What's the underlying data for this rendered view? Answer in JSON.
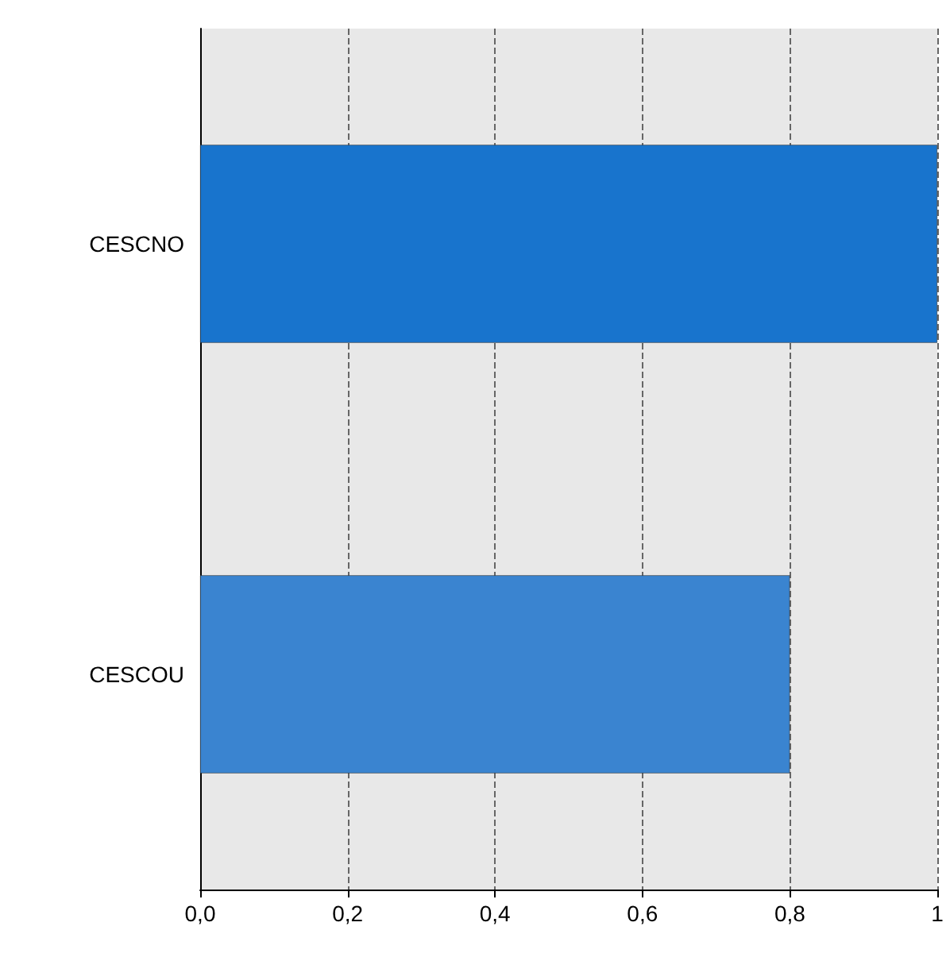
{
  "chart_data": {
    "type": "bar",
    "orientation": "horizontal",
    "categories": [
      "CESCNO",
      "CESCOU"
    ],
    "values": [
      1.0,
      0.8
    ],
    "colors": [
      "#1874cd",
      "#3a84d0"
    ],
    "xlim": [
      0,
      1
    ],
    "xticks": [
      {
        "value": 0,
        "label": "0,0"
      },
      {
        "value": 0.2,
        "label": "0,2"
      },
      {
        "value": 0.4,
        "label": "0,4"
      },
      {
        "value": 0.6,
        "label": "0,6"
      },
      {
        "value": 0.8,
        "label": "0,8"
      },
      {
        "value": 1,
        "label": "1"
      }
    ],
    "grid": "x"
  }
}
